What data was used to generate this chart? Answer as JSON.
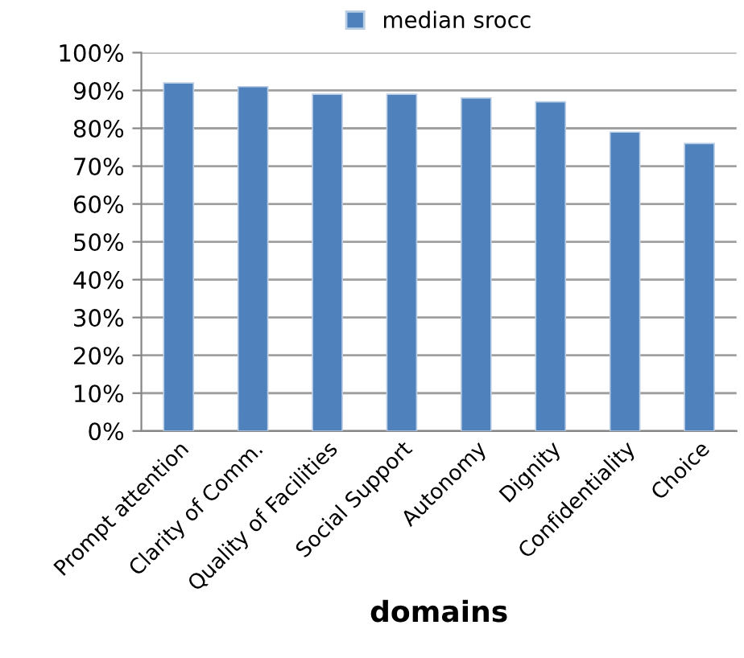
{
  "chart_data": {
    "type": "bar",
    "xlabel": "domains",
    "categories": [
      "Prompt attention",
      "Clarity of Comm.",
      "Quality of Facilities",
      "Social Support",
      "Autonomy",
      "Dignity",
      "Confidentiality",
      "Choice"
    ],
    "series": [
      {
        "name": "median srocc",
        "color": "#4f81bd",
        "values": [
          92,
          91,
          89,
          89,
          88,
          87,
          79,
          76
        ]
      }
    ],
    "ylim": [
      0,
      100
    ],
    "yticks": [
      {
        "value": 0,
        "label": "0%"
      },
      {
        "value": 10,
        "label": "10%"
      },
      {
        "value": 20,
        "label": "20%"
      },
      {
        "value": 30,
        "label": "30%"
      },
      {
        "value": 40,
        "label": "40%"
      },
      {
        "value": 50,
        "label": "50%"
      },
      {
        "value": 60,
        "label": "60%"
      },
      {
        "value": 70,
        "label": "70%"
      },
      {
        "value": 80,
        "label": "80%"
      },
      {
        "value": 90,
        "label": "90%"
      },
      {
        "value": 100,
        "label": "100%"
      }
    ],
    "grid": "y",
    "legend": "top"
  }
}
